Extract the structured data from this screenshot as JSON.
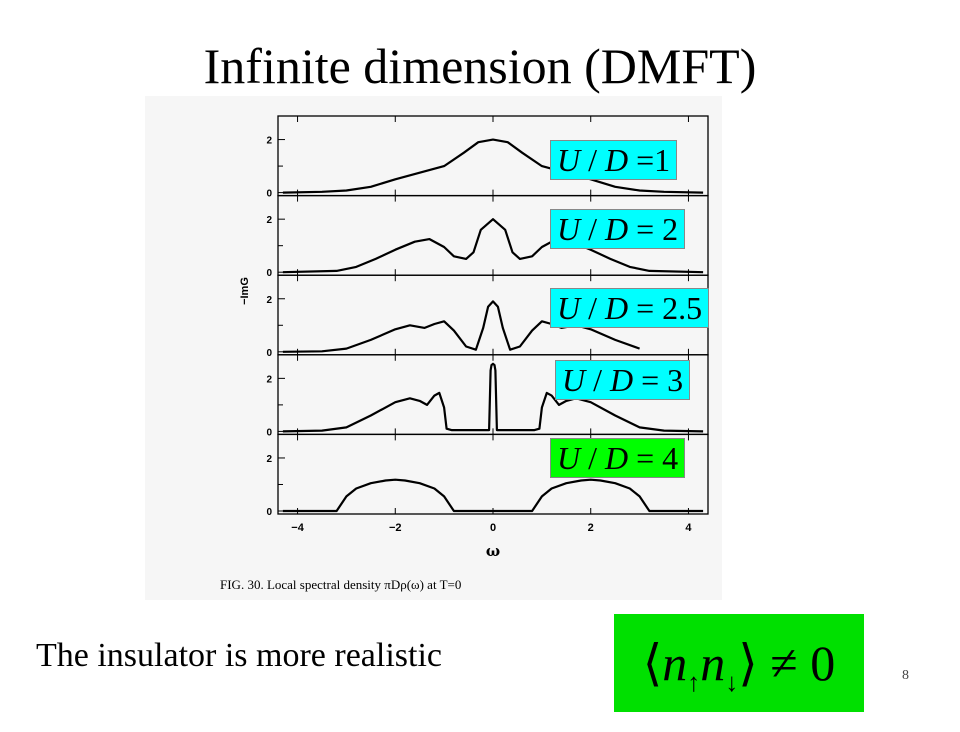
{
  "slide": {
    "title": "Infinite dimension (DMFT)",
    "statement": "The insulator is more realistic",
    "page_number": "8",
    "formula": {
      "left": "⟨",
      "n1": "n",
      "s1": "↑",
      "n2": "n",
      "s2": "↓",
      "right": "⟩",
      "rel": "≠ 0",
      "bg": "#00e000"
    }
  },
  "labels": [
    {
      "var": "U",
      "sep": " / ",
      "var2": "D",
      "value": "=1",
      "bg": "#00ffff"
    },
    {
      "var": "U",
      "sep": " / ",
      "var2": "D",
      "value": "= 2",
      "bg": "#00ffff"
    },
    {
      "var": "U",
      "sep": " / ",
      "var2": "D",
      "value": "= 2.5",
      "bg": "#00ffff"
    },
    {
      "var": "U",
      "sep": " / ",
      "var2": "D",
      "value": "= 3",
      "bg": "#00ffff"
    },
    {
      "var": "U",
      "sep": " / ",
      "var2": "D",
      "value": "= 4",
      "bg": "#00ff00"
    }
  ],
  "chart_data": {
    "type": "line",
    "ylabel": "−ImG",
    "xlabel": "ω",
    "caption": "FIG. 30.  Local spectral density  πDρ(ω)  at  T=0",
    "xlim": [
      -4.4,
      4.4
    ],
    "x_ticks": [
      "−4",
      "−2",
      "0",
      "2",
      "4"
    ],
    "x_tick_values": [
      -4,
      -2,
      0,
      2,
      4
    ],
    "panel_ylim": [
      0,
      2.7
    ],
    "panel_y_ticks": [
      "0",
      "2"
    ],
    "panel_y_tick_values": [
      0,
      2
    ],
    "series": [
      {
        "name": "U/D=1",
        "x": [
          -4.3,
          -3.5,
          -3.0,
          -2.5,
          -2.0,
          -1.5,
          -1.0,
          -0.6,
          -0.3,
          0,
          0.3,
          0.6,
          1.0,
          1.5,
          2.0,
          2.5,
          3.0,
          3.5,
          4.3
        ],
        "y": [
          0,
          0.03,
          0.08,
          0.22,
          0.5,
          0.75,
          1.0,
          1.5,
          1.9,
          2.0,
          1.9,
          1.5,
          1.0,
          0.75,
          0.5,
          0.22,
          0.08,
          0.03,
          0
        ]
      },
      {
        "name": "U/D=2",
        "x": [
          -4.3,
          -3.2,
          -2.8,
          -2.4,
          -2.0,
          -1.6,
          -1.3,
          -1.0,
          -0.8,
          -0.55,
          -0.4,
          -0.25,
          0,
          0.25,
          0.4,
          0.55,
          0.8,
          1.0,
          1.3,
          1.6,
          2.0,
          2.4,
          2.8,
          3.2,
          4.3
        ],
        "y": [
          0,
          0.05,
          0.2,
          0.5,
          0.85,
          1.15,
          1.25,
          0.95,
          0.6,
          0.5,
          0.75,
          1.6,
          2.0,
          1.6,
          0.75,
          0.5,
          0.6,
          0.95,
          1.25,
          1.15,
          0.85,
          0.5,
          0.2,
          0.05,
          0
        ]
      },
      {
        "name": "U/D=2.5",
        "x": [
          -4.3,
          -3.5,
          -3.0,
          -2.5,
          -2.0,
          -1.7,
          -1.4,
          -1.2,
          -1.0,
          -0.8,
          -0.55,
          -0.35,
          -0.2,
          -0.1,
          0,
          0.1,
          0.2,
          0.35,
          0.55,
          0.8,
          1.0,
          1.2,
          1.4,
          1.7,
          2.0,
          2.5,
          3.0
        ],
        "y": [
          0,
          0.02,
          0.12,
          0.45,
          0.85,
          1.0,
          0.9,
          1.05,
          1.15,
          0.8,
          0.2,
          0.08,
          0.9,
          1.7,
          1.9,
          1.7,
          0.9,
          0.08,
          0.2,
          0.8,
          1.15,
          1.05,
          0.9,
          1.0,
          0.85,
          0.45,
          0.12
        ]
      },
      {
        "name": "U/D=3",
        "x": [
          -4.3,
          -3.5,
          -3.0,
          -2.5,
          -2.0,
          -1.7,
          -1.5,
          -1.35,
          -1.2,
          -1.1,
          -1.0,
          -0.95,
          -0.85,
          -0.7,
          -0.3,
          -0.08,
          -0.05,
          -0.03,
          0,
          0.03,
          0.05,
          0.08,
          0.3,
          0.7,
          0.85,
          0.95,
          1.0,
          1.1,
          1.2,
          1.35,
          1.5,
          1.7,
          2.0,
          2.5,
          3.0,
          3.5,
          4.3
        ],
        "y": [
          0,
          0.03,
          0.15,
          0.6,
          1.1,
          1.25,
          1.15,
          1.0,
          1.35,
          1.45,
          0.9,
          0.1,
          0.05,
          0.05,
          0.05,
          0.05,
          2.3,
          2.5,
          2.55,
          2.5,
          2.3,
          0.05,
          0.05,
          0.05,
          0.05,
          0.1,
          0.9,
          1.45,
          1.35,
          1.0,
          1.15,
          1.25,
          1.1,
          0.6,
          0.15,
          0.03,
          0
        ]
      },
      {
        "name": "U/D=4",
        "x": [
          -4.3,
          -3.2,
          -3.0,
          -2.8,
          -2.5,
          -2.2,
          -2.0,
          -1.8,
          -1.5,
          -1.2,
          -1.0,
          -0.8,
          0,
          0.8,
          1.0,
          1.2,
          1.5,
          1.8,
          2.0,
          2.2,
          2.5,
          2.8,
          3.0,
          3.2,
          4.3
        ],
        "y": [
          0,
          0,
          0.55,
          0.85,
          1.05,
          1.15,
          1.18,
          1.15,
          1.05,
          0.85,
          0.55,
          0,
          0,
          0,
          0.55,
          0.85,
          1.05,
          1.15,
          1.18,
          1.15,
          1.05,
          0.85,
          0.55,
          0,
          0
        ]
      }
    ]
  }
}
